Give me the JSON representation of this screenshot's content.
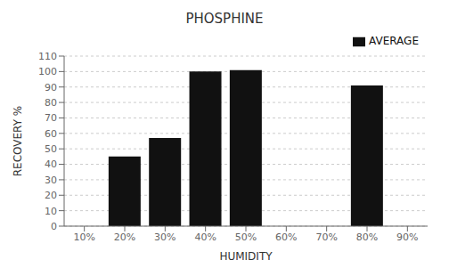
{
  "chart_data": {
    "type": "bar",
    "title": "PHOSPHINE",
    "xlabel": "HUMIDITY",
    "ylabel": "RECOVERY %",
    "categories": [
      "10%",
      "20%",
      "30%",
      "40%",
      "50%",
      "60%",
      "70%",
      "80%",
      "90%"
    ],
    "series": [
      {
        "name": "AVERAGE",
        "color": "#111111",
        "values": [
          null,
          45,
          57,
          100,
          101,
          null,
          null,
          91,
          null
        ]
      }
    ],
    "ylim": [
      0,
      110
    ],
    "yticks": [
      0,
      10,
      20,
      30,
      40,
      50,
      60,
      70,
      80,
      90,
      100,
      110
    ],
    "grid": true,
    "legend": "upper right"
  }
}
